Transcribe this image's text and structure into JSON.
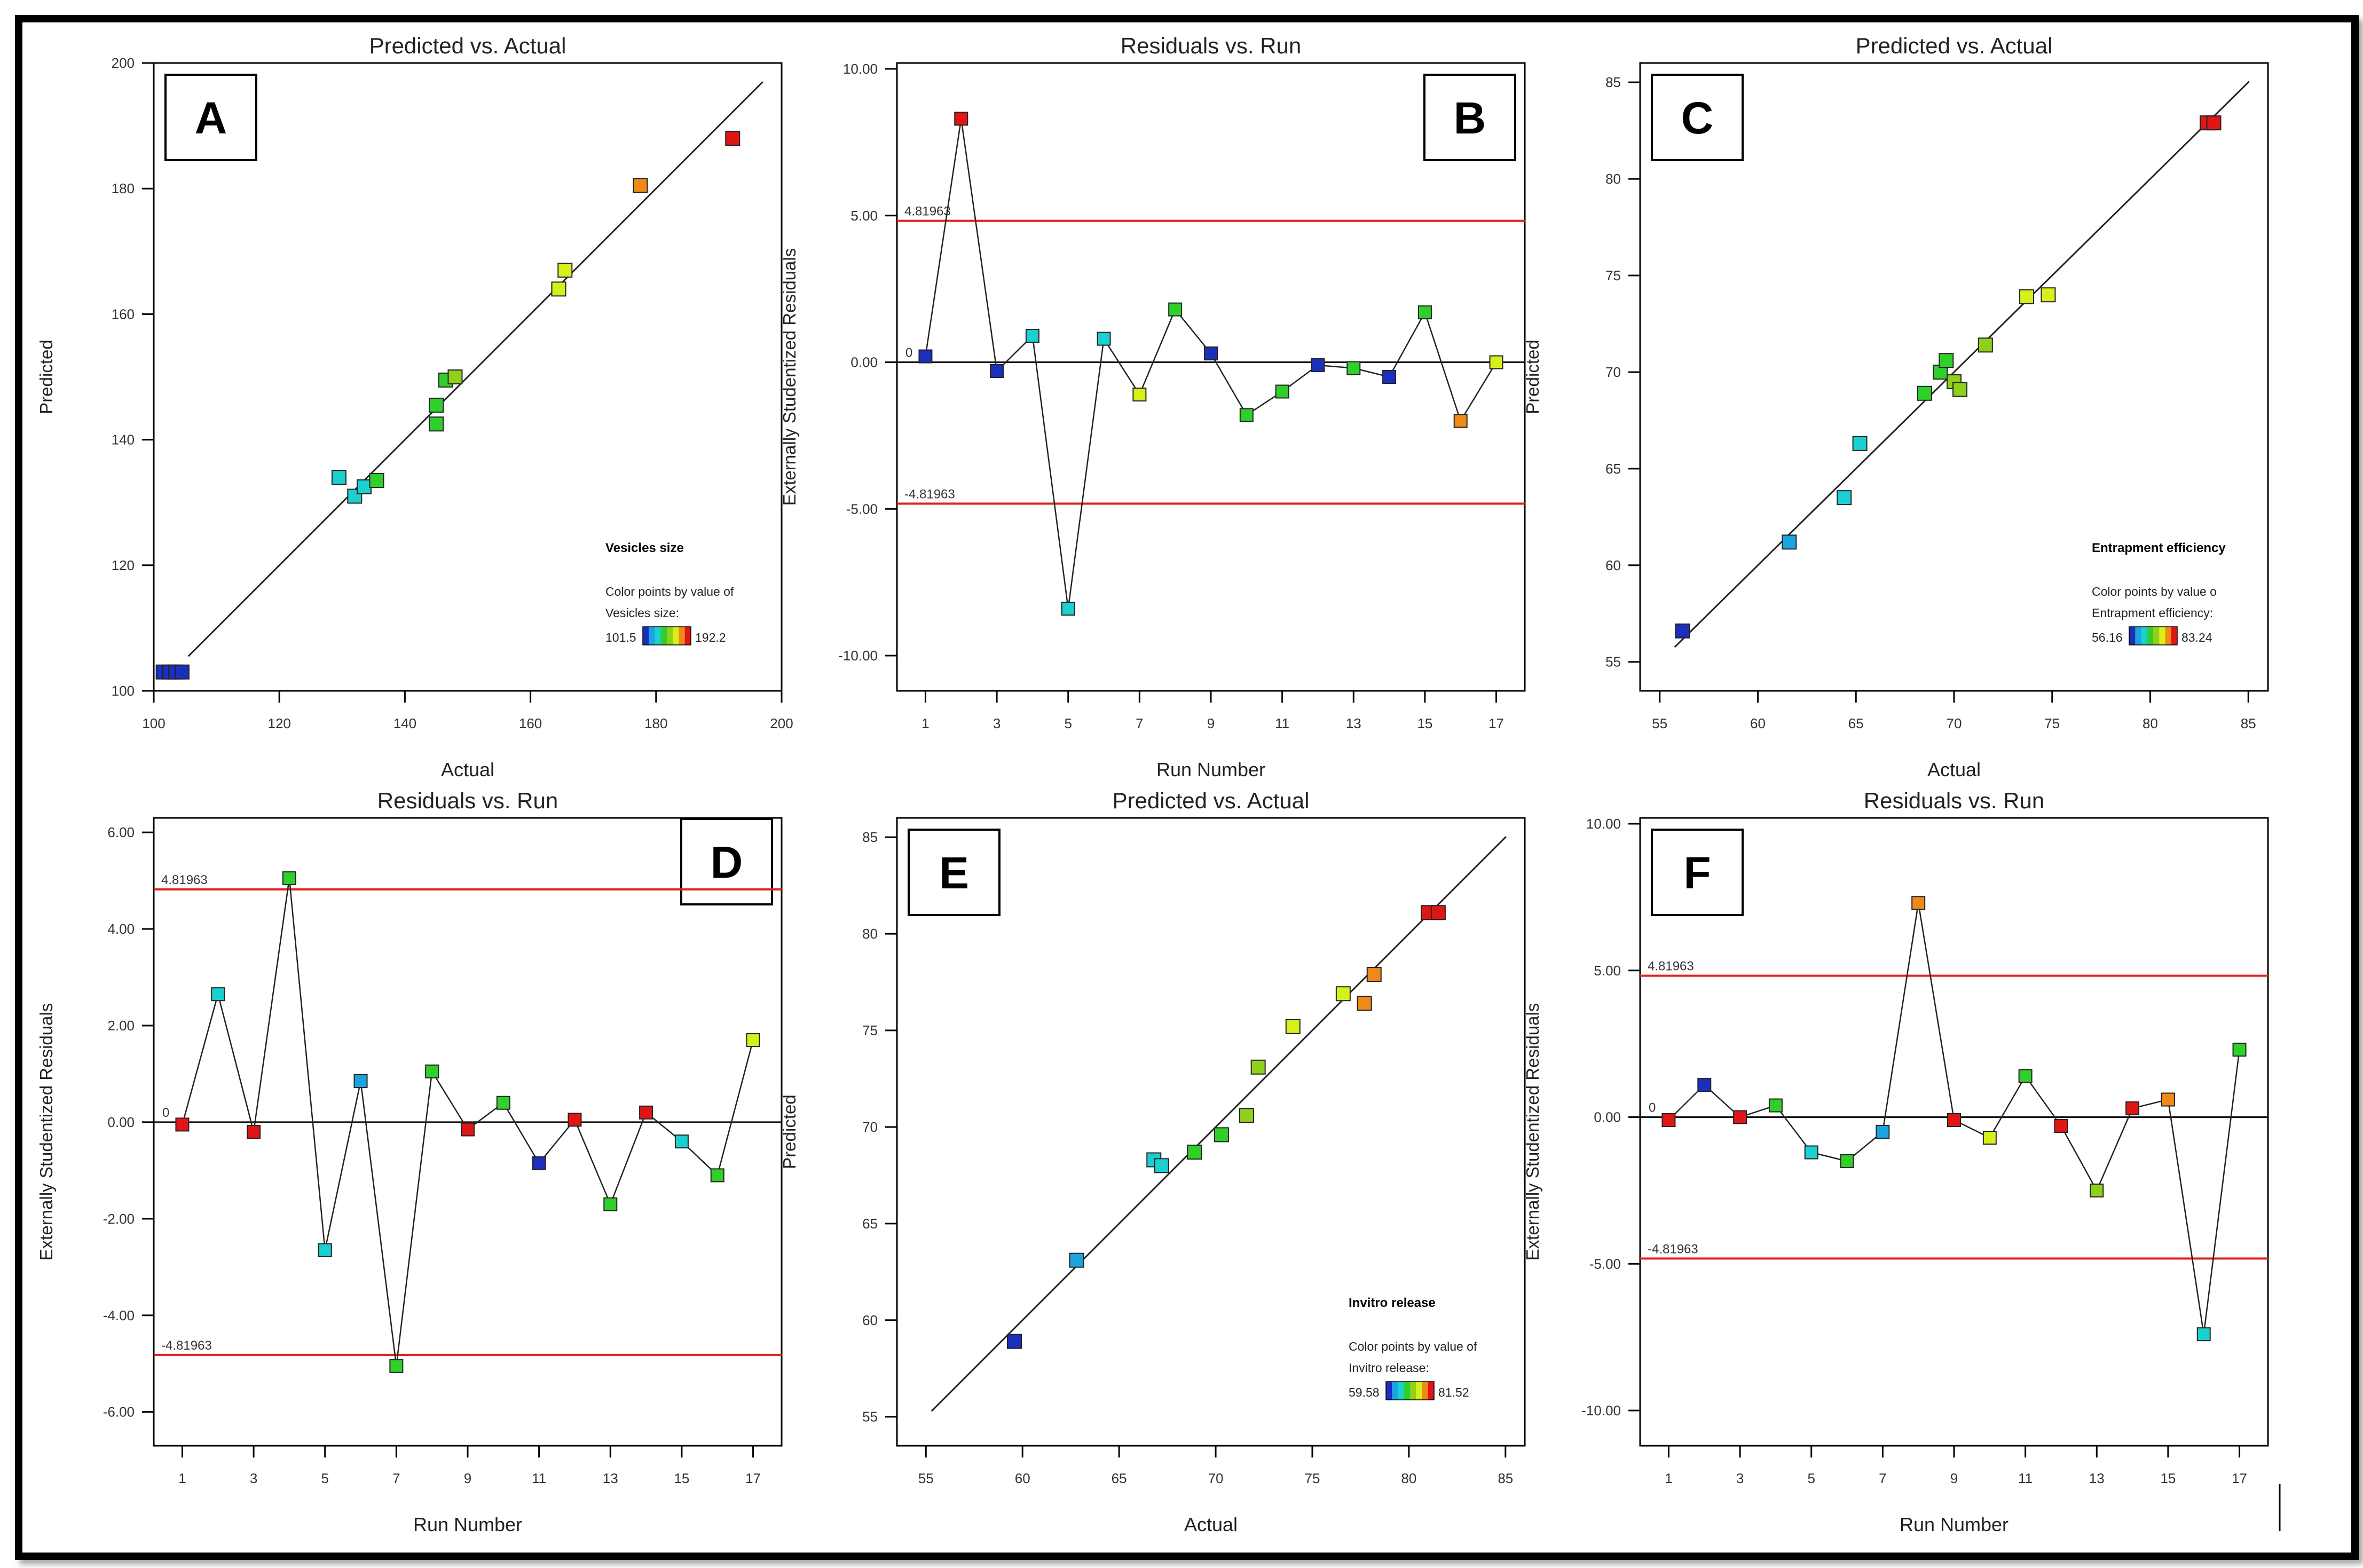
{
  "chart_data": [
    {
      "id": "A",
      "type": "scatter",
      "title": "Predicted vs. Actual",
      "xlabel": "Actual",
      "ylabel": "Predicted",
      "xlim": [
        100,
        200
      ],
      "ylim": [
        100,
        200
      ],
      "xticks": [
        100,
        120,
        140,
        160,
        180,
        200
      ],
      "yticks": [
        100,
        120,
        140,
        160,
        180,
        200
      ],
      "diagonal": true,
      "points": [
        [
          101.5,
          103
        ],
        [
          102.5,
          103
        ],
        [
          103.5,
          103
        ],
        [
          104.5,
          103
        ],
        [
          129.5,
          134
        ],
        [
          132,
          131
        ],
        [
          133.5,
          132.5
        ],
        [
          135.5,
          133.5
        ],
        [
          145,
          145.5
        ],
        [
          145,
          142.5
        ],
        [
          146.5,
          149.5
        ],
        [
          148,
          150
        ],
        [
          164.5,
          164
        ],
        [
          165.5,
          167
        ],
        [
          177.5,
          180.5
        ],
        [
          192.2,
          188
        ]
      ],
      "colorbar": {
        "title": "Vesicles size",
        "caption1": "Color points by value of",
        "caption2": "Vesicles size:",
        "min": "101.5",
        "max": "192.2"
      }
    },
    {
      "id": "B",
      "type": "line",
      "title": "Residuals vs. Run",
      "xlabel": "Run Number",
      "ylabel": "Externally Studentized Residuals",
      "xlim": [
        0.2,
        17.8
      ],
      "ylim": [
        -11.2,
        10.2
      ],
      "xticks": [
        1,
        3,
        5,
        7,
        9,
        11,
        13,
        15,
        17
      ],
      "yticks": [
        10,
        5,
        0,
        -5,
        -10
      ],
      "ytick_labels": [
        "10.00",
        "5.00",
        "0.00",
        "-5.00",
        "-10.00"
      ],
      "zero_label": "0",
      "limits": [
        4.81963,
        -4.81963
      ],
      "limit_labels": [
        "4.81963",
        "-4.81963"
      ],
      "x": [
        1,
        2,
        3,
        4,
        5,
        6,
        7,
        8,
        9,
        10,
        11,
        12,
        13,
        14,
        15,
        16,
        17
      ],
      "y": [
        0.2,
        8.3,
        -0.3,
        0.9,
        -8.4,
        0.8,
        -1.1,
        1.8,
        0.3,
        -1.8,
        -1.0,
        -0.1,
        -0.2,
        -0.5,
        1.7,
        -2.0,
        0.0
      ],
      "colors": [
        "#1b2fbd",
        "#e01515",
        "#1b2fbd",
        "#1ccfd0",
        "#1ccfd0",
        "#1ccfd0",
        "#d7f01b",
        "#2fd02a",
        "#1b2fbd",
        "#2fd02a",
        "#2fd02a",
        "#1b2fbd",
        "#2fd02a",
        "#1b2fbd",
        "#2fd02a",
        "#ef8a18",
        "#d7f01b"
      ]
    },
    {
      "id": "C",
      "type": "scatter",
      "title": "Predicted vs. Actual",
      "xlabel": "Actual",
      "ylabel": "Predicted",
      "xlim": [
        54,
        86
      ],
      "ylim": [
        53.5,
        86
      ],
      "xticks": [
        55,
        60,
        65,
        70,
        75,
        80,
        85
      ],
      "yticks": [
        55,
        60,
        65,
        70,
        75,
        80,
        85
      ],
      "diagonal": true,
      "points": [
        [
          56.16,
          56.6
        ],
        [
          61.6,
          61.2
        ],
        [
          64.4,
          63.5
        ],
        [
          65.2,
          66.3
        ],
        [
          68.5,
          68.9
        ],
        [
          69.3,
          70.0
        ],
        [
          69.6,
          70.6
        ],
        [
          70.0,
          69.5
        ],
        [
          70.3,
          69.1
        ],
        [
          71.6,
          71.4
        ],
        [
          73.7,
          73.9
        ],
        [
          74.8,
          74.0
        ],
        [
          82.9,
          82.9
        ],
        [
          83.24,
          82.9
        ]
      ],
      "colorbar": {
        "title": "Entrapment efficiency",
        "caption1": "Color points by value o",
        "caption2": "Entrapment efficiency:",
        "min": "56.16",
        "max": "83.24"
      }
    },
    {
      "id": "D",
      "type": "line",
      "title": "Residuals vs. Run",
      "xlabel": "Run Number",
      "ylabel": "Externally Studentized Residuals",
      "xlim": [
        0.2,
        17.8
      ],
      "ylim": [
        -6.7,
        6.3
      ],
      "xticks": [
        1,
        3,
        5,
        7,
        9,
        11,
        13,
        15,
        17
      ],
      "yticks": [
        6,
        4,
        2,
        0,
        -2,
        -4,
        -6
      ],
      "ytick_labels": [
        "6.00",
        "4.00",
        "2.00",
        "0.00",
        "-2.00",
        "-4.00",
        "-6.00"
      ],
      "zero_label": "0",
      "limits": [
        4.81963,
        -4.81963
      ],
      "limit_labels": [
        "4.81963",
        "-4.81963"
      ],
      "x": [
        1,
        2,
        3,
        4,
        5,
        6,
        7,
        8,
        9,
        10,
        11,
        12,
        13,
        14,
        15,
        16,
        17
      ],
      "y": [
        -0.05,
        2.65,
        -0.2,
        5.05,
        -2.65,
        0.85,
        -5.05,
        1.05,
        -0.15,
        0.4,
        -0.85,
        0.05,
        -1.7,
        0.2,
        -0.4,
        -1.1,
        1.7
      ],
      "colors": [
        "#e01515",
        "#1ccfd0",
        "#e01515",
        "#2fd02a",
        "#1ccfd0",
        "#1ca4e0",
        "#2fd02a",
        "#2fd02a",
        "#e01515",
        "#2fd02a",
        "#1b2fbd",
        "#e01515",
        "#2fd02a",
        "#e01515",
        "#1ccfd0",
        "#2fd02a",
        "#d7f01b"
      ]
    },
    {
      "id": "E",
      "type": "scatter",
      "title": "Predicted vs. Actual",
      "xlabel": "Actual",
      "ylabel": "Predicted",
      "xlim": [
        53.5,
        86
      ],
      "ylim": [
        53.5,
        86
      ],
      "xticks": [
        55,
        60,
        65,
        70,
        75,
        80,
        85
      ],
      "yticks": [
        55,
        60,
        65,
        70,
        75,
        80,
        85
      ],
      "diagonal": true,
      "points": [
        [
          59.58,
          58.9
        ],
        [
          62.8,
          63.1
        ],
        [
          66.8,
          68.3
        ],
        [
          67.2,
          68.0
        ],
        [
          68.9,
          68.7
        ],
        [
          70.3,
          69.6
        ],
        [
          71.6,
          70.6
        ],
        [
          72.2,
          73.1
        ],
        [
          74.0,
          75.2
        ],
        [
          76.6,
          76.9
        ],
        [
          77.7,
          76.4
        ],
        [
          78.2,
          77.9
        ],
        [
          81.0,
          81.1
        ],
        [
          81.52,
          81.1
        ]
      ],
      "colorbar": {
        "title": "Invitro release",
        "caption1": "Color points by value of",
        "caption2": "Invitro release:",
        "min": "59.58",
        "max": "81.52"
      }
    },
    {
      "id": "F",
      "type": "line",
      "title": "Residuals vs. Run",
      "xlabel": "Run Number",
      "ylabel": "Externally Studentized Residuals",
      "xlim": [
        0.2,
        17.8
      ],
      "ylim": [
        -11.2,
        10.2
      ],
      "xticks": [
        1,
        3,
        5,
        7,
        9,
        11,
        13,
        15,
        17
      ],
      "yticks": [
        10,
        5,
        0,
        -5,
        -10
      ],
      "ytick_labels": [
        "10.00",
        "5.00",
        "0.00",
        "-5.00",
        "-10.00"
      ],
      "zero_label": "0",
      "limits": [
        4.81963,
        -4.81963
      ],
      "limit_labels": [
        "4.81963",
        "-4.81963"
      ],
      "x": [
        1,
        2,
        3,
        4,
        5,
        6,
        7,
        8,
        9,
        10,
        11,
        12,
        13,
        14,
        15,
        16,
        17
      ],
      "y": [
        -0.1,
        1.1,
        0.0,
        0.4,
        -1.2,
        -1.5,
        -0.5,
        7.3,
        -0.1,
        -0.7,
        1.4,
        -0.3,
        -2.5,
        0.3,
        0.6,
        -7.4,
        2.3
      ],
      "colors": [
        "#e01515",
        "#1b2fbd",
        "#e01515",
        "#2fd02a",
        "#1ccfd0",
        "#2fd02a",
        "#1ca4e0",
        "#ef8a18",
        "#e01515",
        "#d7f01b",
        "#2fd02a",
        "#e01515",
        "#8fd01b",
        "#e01515",
        "#ef8a18",
        "#1ccfd0",
        "#2fd02a"
      ]
    }
  ]
}
